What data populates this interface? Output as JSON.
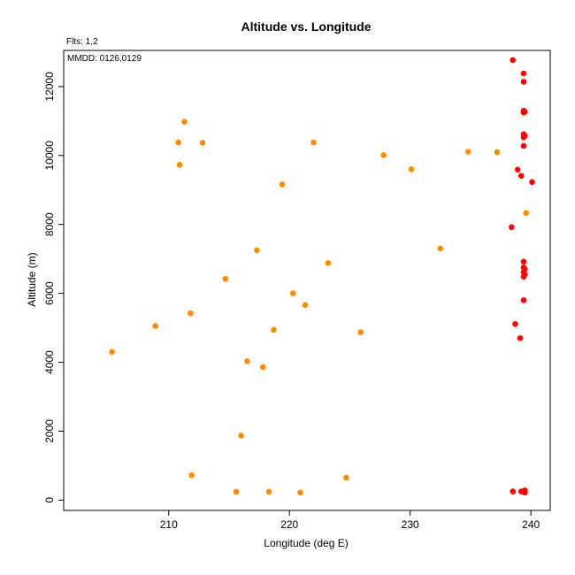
{
  "chart_data": {
    "type": "scatter",
    "title": "Altitude vs. Longitude",
    "subtitle": "Flts: 1,2",
    "annotation": "MMDD: 0126,0129",
    "xlabel": "Longitude (deg E)",
    "ylabel": "Altitude (m)",
    "xlim": [
      201.3,
      241.6
    ],
    "ylim": [
      -300,
      13050
    ],
    "xticks": [
      210,
      220,
      230,
      240
    ],
    "yticks": [
      0,
      2000,
      4000,
      6000,
      8000,
      10000,
      12000
    ],
    "grid": false,
    "legend": "none",
    "series": [
      {
        "color": "#ff8c00",
        "points": [
          [
            205.3,
            4300
          ],
          [
            208.9,
            5050
          ],
          [
            210.8,
            10380
          ],
          [
            210.9,
            9730
          ],
          [
            211.3,
            10980
          ],
          [
            211.8,
            5420
          ],
          [
            211.9,
            720
          ],
          [
            212.8,
            10370
          ],
          [
            214.7,
            6420
          ],
          [
            215.6,
            240
          ],
          [
            216.0,
            1870
          ],
          [
            216.5,
            4030
          ],
          [
            217.3,
            7250
          ],
          [
            217.8,
            3860
          ],
          [
            218.3,
            240
          ],
          [
            218.7,
            4940
          ],
          [
            219.4,
            9160
          ],
          [
            220.3,
            6000
          ],
          [
            220.9,
            220
          ],
          [
            221.3,
            5660
          ],
          [
            222.0,
            10380
          ],
          [
            223.2,
            6880
          ],
          [
            224.7,
            650
          ],
          [
            225.9,
            4870
          ],
          [
            227.8,
            10010
          ],
          [
            230.1,
            9600
          ],
          [
            232.5,
            7300
          ],
          [
            234.8,
            10110
          ],
          [
            237.2,
            10100
          ],
          [
            239.6,
            8330
          ]
        ]
      },
      {
        "color": "#ff0000",
        "points": [
          [
            238.4,
            7920
          ],
          [
            238.5,
            12770
          ],
          [
            238.5,
            250
          ],
          [
            238.7,
            5110
          ],
          [
            238.9,
            9590
          ],
          [
            239.1,
            4700
          ],
          [
            239.2,
            9410
          ],
          [
            239.2,
            250
          ],
          [
            239.4,
            12380
          ],
          [
            239.4,
            12140
          ],
          [
            239.4,
            11300
          ],
          [
            239.4,
            11250
          ],
          [
            239.4,
            10620
          ],
          [
            239.4,
            10530
          ],
          [
            239.4,
            10280
          ],
          [
            239.4,
            6920
          ],
          [
            239.4,
            6750
          ],
          [
            239.4,
            6620
          ],
          [
            239.4,
            6480
          ],
          [
            239.4,
            5800
          ],
          [
            239.4,
            250
          ],
          [
            239.5,
            11270
          ],
          [
            239.5,
            10570
          ],
          [
            239.5,
            6700
          ],
          [
            239.5,
            6550
          ],
          [
            239.5,
            220
          ],
          [
            239.5,
            280
          ],
          [
            240.1,
            9230
          ]
        ]
      }
    ]
  }
}
